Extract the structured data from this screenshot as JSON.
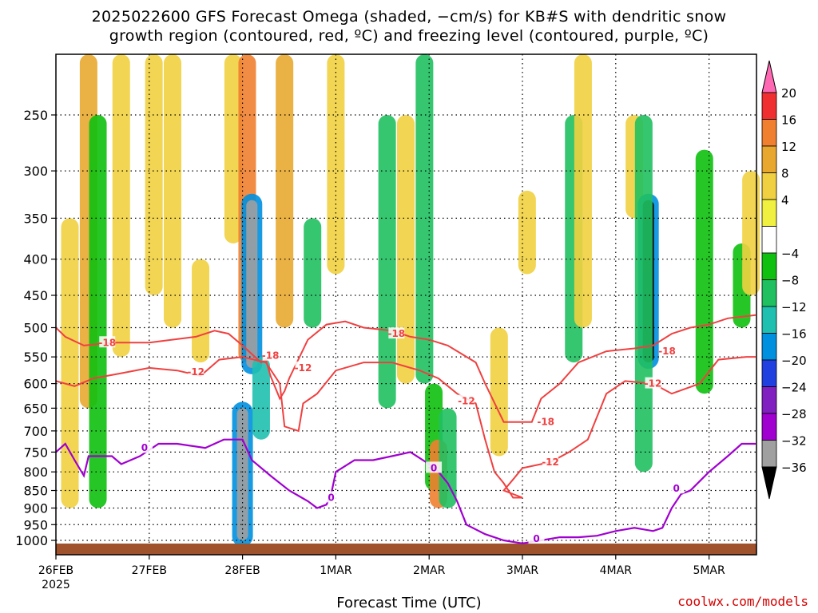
{
  "title_line1": "2025022600 GFS Forecast Omega (shaded, −cm/s) for KB#S with dendritic snow",
  "title_line2": "growth region (contoured, red, ºC) and freezing level (contoured, purple, ºC)",
  "xlabel": "Forecast Time (UTC)",
  "credit": "coolwx.com/models",
  "chart_data": {
    "type": "heatmap",
    "yaxis": {
      "ticks": [
        250,
        300,
        350,
        400,
        450,
        500,
        550,
        600,
        650,
        700,
        750,
        800,
        850,
        900,
        950,
        1000
      ],
      "unit": "hPa",
      "range": [
        1020,
        200
      ]
    },
    "xaxis": {
      "ticks": [
        "26FEB",
        "27FEB",
        "28FEB",
        "1MAR",
        "2MAR",
        "3MAR",
        "4MAR",
        "5MAR"
      ],
      "sublabel": "2025",
      "range_days": [
        0,
        7.5
      ]
    },
    "grid": true,
    "colorbar": {
      "labels": [
        "20",
        "16",
        "12",
        "8",
        "4",
        "−4",
        "−8",
        "−12",
        "−16",
        "−20",
        "−24",
        "−28",
        "−32",
        "−36"
      ],
      "colors": [
        "#ff69b4",
        "#f03030",
        "#f08030",
        "#e8a830",
        "#f0d040",
        "#f0f040",
        "#ffffff",
        "#10c010",
        "#20c060",
        "#20c0b0",
        "#0090e0",
        "#2040e0",
        "#8020c0",
        "#a000d0",
        "#a0a0a0",
        "#000000"
      ]
    },
    "contour_labels": {
      "dgz_minus18": "-18",
      "dgz_minus12": "-12",
      "freezing_0": "0"
    },
    "omega_blobs": [
      {
        "day": 0.15,
        "p0": 350,
        "p1": 900,
        "v": 6
      },
      {
        "day": 0.35,
        "p0": 200,
        "p1": 650,
        "v": 8
      },
      {
        "day": 0.45,
        "p0": 250,
        "p1": 900,
        "v": -6
      },
      {
        "day": 0.7,
        "p0": 200,
        "p1": 550,
        "v": 5
      },
      {
        "day": 1.05,
        "p0": 200,
        "p1": 450,
        "v": 5
      },
      {
        "day": 1.25,
        "p0": 200,
        "p1": 500,
        "v": 6
      },
      {
        "day": 1.55,
        "p0": 400,
        "p1": 560,
        "v": 5
      },
      {
        "day": 1.9,
        "p0": 200,
        "p1": 380,
        "v": 5
      },
      {
        "day": 2.05,
        "p0": 200,
        "p1": 560,
        "v": 12
      },
      {
        "day": 2.1,
        "p0": 330,
        "p1": 570,
        "v": -30
      },
      {
        "day": 2.0,
        "p0": 650,
        "p1": 1000,
        "v": -30
      },
      {
        "day": 2.2,
        "p0": 550,
        "p1": 720,
        "v": -12
      },
      {
        "day": 2.45,
        "p0": 200,
        "p1": 500,
        "v": 8
      },
      {
        "day": 2.75,
        "p0": 350,
        "p1": 500,
        "v": -8
      },
      {
        "day": 3.0,
        "p0": 200,
        "p1": 420,
        "v": 6
      },
      {
        "day": 3.55,
        "p0": 250,
        "p1": 650,
        "v": -8
      },
      {
        "day": 3.75,
        "p0": 250,
        "p1": 600,
        "v": 6
      },
      {
        "day": 3.95,
        "p0": 200,
        "p1": 600,
        "v": -10
      },
      {
        "day": 4.05,
        "p0": 600,
        "p1": 850,
        "v": -6
      },
      {
        "day": 4.1,
        "p0": 720,
        "p1": 900,
        "v": 12
      },
      {
        "day": 4.2,
        "p0": 650,
        "p1": 900,
        "v": -8
      },
      {
        "day": 4.75,
        "p0": 500,
        "p1": 760,
        "v": 5
      },
      {
        "day": 5.05,
        "p0": 320,
        "p1": 420,
        "v": 5
      },
      {
        "day": 5.55,
        "p0": 250,
        "p1": 560,
        "v": -8
      },
      {
        "day": 5.65,
        "p0": 200,
        "p1": 500,
        "v": 5
      },
      {
        "day": 6.2,
        "p0": 250,
        "p1": 350,
        "v": 6
      },
      {
        "day": 6.35,
        "p0": 330,
        "p1": 560,
        "v": -32
      },
      {
        "day": 6.3,
        "p0": 250,
        "p1": 800,
        "v": -8
      },
      {
        "day": 6.95,
        "p0": 280,
        "p1": 620,
        "v": -6
      },
      {
        "day": 7.35,
        "p0": 380,
        "p1": 500,
        "v": -6
      },
      {
        "day": 7.45,
        "p0": 300,
        "p1": 450,
        "v": 5
      }
    ]
  }
}
